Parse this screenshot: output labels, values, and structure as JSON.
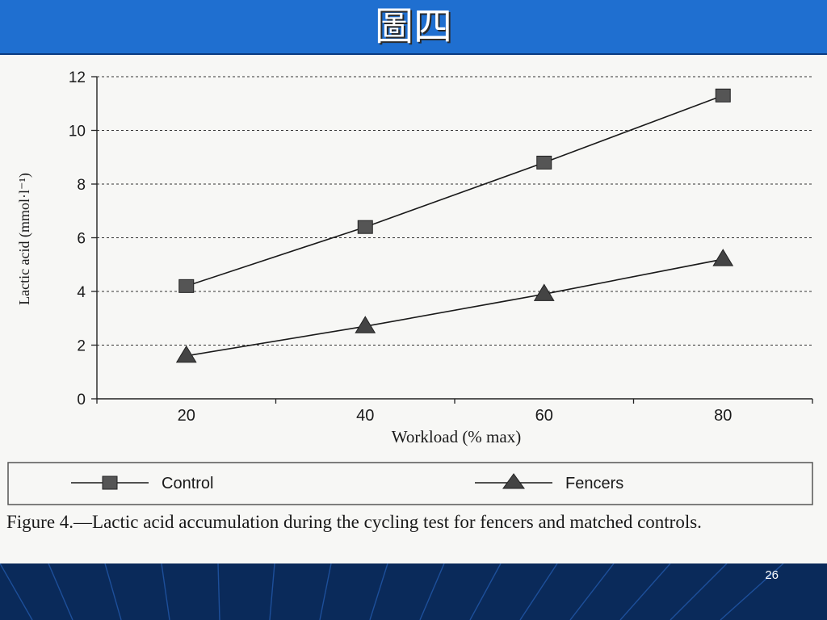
{
  "slide": {
    "title": "圖四",
    "page_number": "26"
  },
  "figure": {
    "caption": "Figure 4.—Lactic acid accumulation during the cycling test for fencers and matched controls."
  },
  "chart_data": {
    "type": "line",
    "title": "",
    "xlabel": "Workload (% max)",
    "ylabel": "Lactic acid (mmol·l⁻¹)",
    "x": [
      20,
      40,
      60,
      80
    ],
    "x_tick_labels": [
      "20",
      "40",
      "60",
      "80"
    ],
    "y_tick_labels": [
      "0",
      "2",
      "4",
      "6",
      "8",
      "10",
      "12"
    ],
    "xlim": [
      10,
      90
    ],
    "ylim": [
      0,
      12
    ],
    "grid": "horizontal dotted",
    "legend_position": "bottom",
    "series": [
      {
        "name": "Control",
        "marker": "square",
        "values": [
          4.2,
          6.4,
          8.8,
          11.3
        ]
      },
      {
        "name": "Fencers",
        "marker": "triangle",
        "values": [
          1.6,
          2.7,
          3.9,
          5.2
        ]
      }
    ]
  }
}
